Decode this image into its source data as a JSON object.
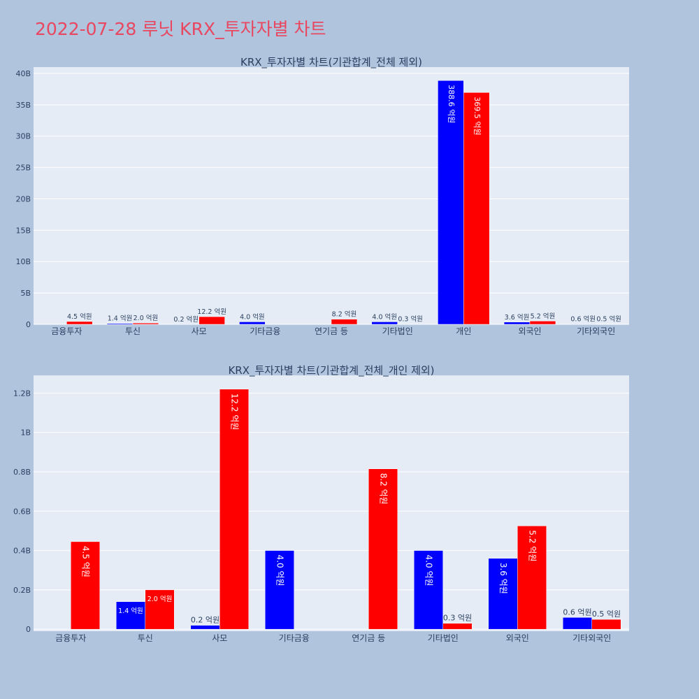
{
  "page": {
    "title": "2022-07-28 루닛 KRX_투자자별 차트"
  },
  "colors": {
    "background": "#b0c4de",
    "plot_bg": "#e5ecf6",
    "grid": "#ffffff",
    "title": "#e8475f",
    "text": "#2a3f5f",
    "series_a": "#0000ff",
    "series_b": "#ff0000"
  },
  "chart_data": [
    {
      "type": "bar",
      "title": "KRX_투자자별 차트(기관합계_전체 제외)",
      "categories": [
        "금융투자",
        "투신",
        "사모",
        "기타금융",
        "연기금 등",
        "기타법인",
        "개인",
        "외국인",
        "기타외국인"
      ],
      "series": [
        {
          "color": "#0000ff",
          "values": [
            0,
            140000000,
            20000000,
            400000000,
            0,
            400000000,
            38860000000,
            360000000,
            60000000
          ],
          "labels": [
            "",
            "1.4 억원",
            "0.2 억원",
            "4.0 억원",
            "",
            "4.0 억원",
            "388.6 억원",
            "3.6 억원",
            "0.6 억원"
          ]
        },
        {
          "color": "#ff0000",
          "values": [
            450000000,
            200000000,
            1220000000,
            0,
            820000000,
            30000000,
            36950000000,
            520000000,
            50000000
          ],
          "labels": [
            "4.5 억원",
            "2.0 억원",
            "12.2 억원",
            "",
            "8.2 억원",
            "0.3 억원",
            "369.5 억원",
            "5.2 억원",
            "0.5 억원"
          ]
        }
      ],
      "yticks": [
        "0",
        "5B",
        "10B",
        "15B",
        "20B",
        "25B",
        "30B",
        "35B",
        "40B"
      ],
      "ylim": [
        0,
        41000000000
      ],
      "grid": true
    },
    {
      "type": "bar",
      "title": "KRX_투자자별 차트(기관합계_전체_개인 제외)",
      "categories": [
        "금융투자",
        "투신",
        "사모",
        "기타금융",
        "연기금 등",
        "기타법인",
        "외국인",
        "기타외국인"
      ],
      "series": [
        {
          "color": "#0000ff",
          "values": [
            0,
            140000000,
            20000000,
            400000000,
            0,
            400000000,
            360000000,
            60000000
          ],
          "labels": [
            "",
            "1.4 억원",
            "0.2 억원",
            "4.0 억원",
            "",
            "4.0 억원",
            "3.6 억원",
            "0.6 억원"
          ]
        },
        {
          "color": "#ff0000",
          "values": [
            445000000,
            200000000,
            1220000000,
            0,
            815000000,
            30000000,
            525000000,
            50000000
          ],
          "labels": [
            "4.5 억원",
            "2.0 억원",
            "12.2 억원",
            "",
            "8.2 억원",
            "0.3 억원",
            "5.2 억원",
            "0.5 억원"
          ]
        }
      ],
      "yticks": [
        "0",
        "0.2B",
        "0.4B",
        "0.6B",
        "0.8B",
        "1B",
        "1.2B"
      ],
      "ylim": [
        -10000000,
        1290000000
      ],
      "grid": true
    }
  ]
}
